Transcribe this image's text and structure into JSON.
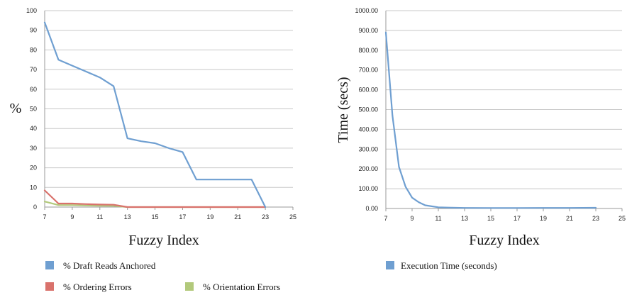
{
  "chart_data": [
    {
      "type": "line",
      "xlabel": "Fuzzy Index",
      "ylabel": "%",
      "xlim": [
        7,
        25
      ],
      "ylim": [
        0,
        100
      ],
      "x_ticks": [
        7,
        9,
        11,
        13,
        15,
        17,
        19,
        21,
        23,
        25
      ],
      "y_ticks": [
        0,
        10,
        20,
        30,
        40,
        50,
        60,
        70,
        80,
        90,
        100
      ],
      "y_tick_labels": [
        "0",
        "10",
        "20",
        "30",
        "40",
        "50",
        "60",
        "70",
        "80",
        "90",
        "100"
      ],
      "grid": true,
      "legend_position": "bottom",
      "series": [
        {
          "name": "% Draft Reads Anchored",
          "color": "#6f9fd1",
          "x": [
            7,
            8,
            9,
            10,
            11,
            12,
            13,
            14,
            15,
            16,
            17,
            18,
            19,
            20,
            21,
            22,
            23
          ],
          "y": [
            94,
            75,
            72,
            69,
            66,
            61.5,
            35,
            33.5,
            32.5,
            30,
            28,
            14,
            14,
            14,
            14,
            14,
            0
          ]
        },
        {
          "name": "% Ordering Errors",
          "color": "#d9726c",
          "x": [
            7,
            8,
            9,
            10,
            11,
            12,
            13,
            14,
            15,
            16,
            17,
            18,
            19,
            20,
            21,
            22,
            23
          ],
          "y": [
            8.5,
            1.8,
            1.8,
            1.5,
            1.3,
            1.2,
            0,
            0,
            0,
            0,
            0,
            0,
            0,
            0,
            0,
            0,
            0
          ]
        },
        {
          "name": "% Orientation Errors",
          "color": "#b2c97b",
          "x": [
            7,
            8,
            9,
            10,
            11,
            12,
            13,
            14,
            15,
            16,
            17,
            18,
            19,
            20,
            21,
            22,
            23
          ],
          "y": [
            2.8,
            1.0,
            1.0,
            0.8,
            0.7,
            0.6,
            0,
            0,
            0,
            0,
            0,
            0,
            0,
            0,
            0,
            0,
            0
          ]
        }
      ]
    },
    {
      "type": "line",
      "xlabel": "Fuzzy Index",
      "ylabel": "Time (secs)",
      "xlim": [
        7,
        25
      ],
      "ylim": [
        0,
        1000
      ],
      "x_ticks": [
        7,
        9,
        11,
        13,
        15,
        17,
        19,
        21,
        23,
        25
      ],
      "y_ticks": [
        0,
        100,
        200,
        300,
        400,
        500,
        600,
        700,
        800,
        900,
        1000
      ],
      "y_tick_labels": [
        "0.00",
        "100.00",
        "200.00",
        "300.00",
        "400.00",
        "500.00",
        "600.00",
        "700.00",
        "800.00",
        "900.00",
        "1000.00"
      ],
      "grid": true,
      "legend_position": "bottom",
      "series": [
        {
          "name": "Execution Time (seconds)",
          "color": "#6f9fd1",
          "x": [
            7,
            7.5,
            8,
            8.5,
            9,
            9.5,
            10,
            11,
            12,
            13,
            15,
            17,
            19,
            21,
            23
          ],
          "y": [
            890,
            470,
            210,
            110,
            55,
            32,
            16,
            6,
            4,
            3,
            2.5,
            2.5,
            3,
            3,
            3.5
          ]
        }
      ]
    }
  ]
}
